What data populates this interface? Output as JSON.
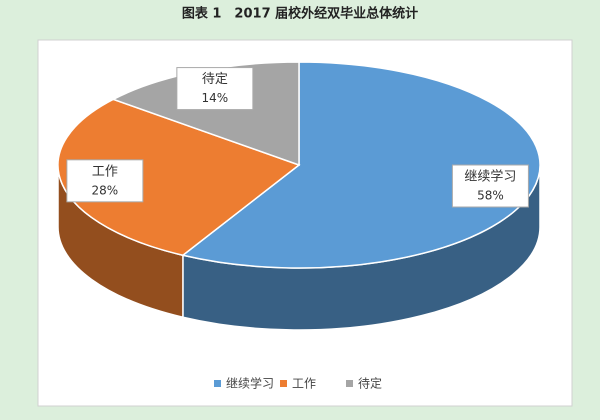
{
  "chart_data": {
    "type": "pie3d",
    "title": "图表 1　2017 届校外经双毕业总体统计",
    "categories": [
      "继续学习",
      "工作",
      "待定"
    ],
    "values": [
      58,
      28,
      14
    ],
    "value_labels": [
      "58%",
      "28%",
      "14%"
    ],
    "colors": [
      "#5b9bd5",
      "#ed7d31",
      "#a5a5a5"
    ],
    "legend": "bottom"
  }
}
